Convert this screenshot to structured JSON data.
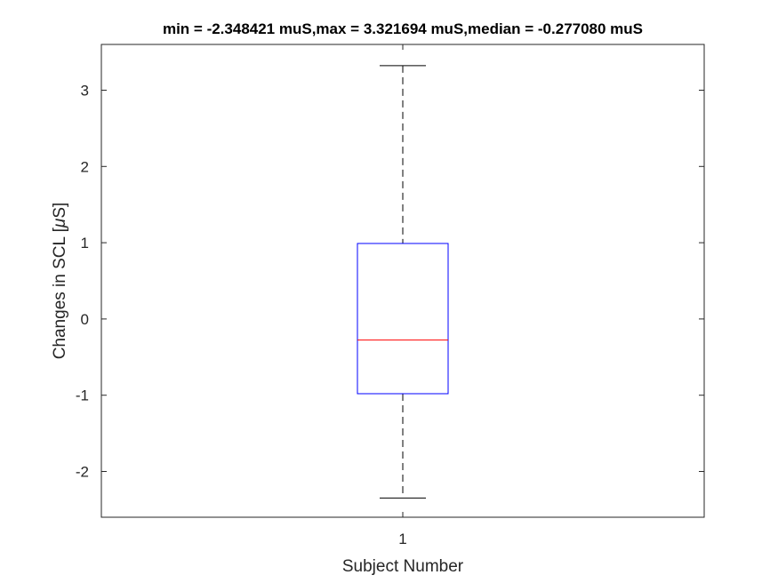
{
  "chart_data": {
    "type": "box",
    "title": "min = -2.348421 muS,max = 3.321694 muS,median = -0.277080 muS",
    "xlabel": "Subject Number",
    "ylabel_prefix": "Changes in SCL [",
    "ylabel_mu": "μ",
    "ylabel_suffix": "S]",
    "categories": [
      "1"
    ],
    "ylim": [
      -2.6,
      3.6
    ],
    "yticks": [
      -2,
      -1,
      0,
      1,
      2,
      3
    ],
    "ytick_labels": [
      "-2",
      "-1",
      "0",
      "1",
      "2",
      "3"
    ],
    "grid": false,
    "boxes": [
      {
        "category": "1",
        "min": -2.348421,
        "q1": -0.98,
        "median": -0.27708,
        "q3": 0.99,
        "max": 3.321694
      }
    ],
    "colors": {
      "box": "#0000ff",
      "median": "#ff0000",
      "whisker": "#000000",
      "axes": "#262626"
    }
  }
}
